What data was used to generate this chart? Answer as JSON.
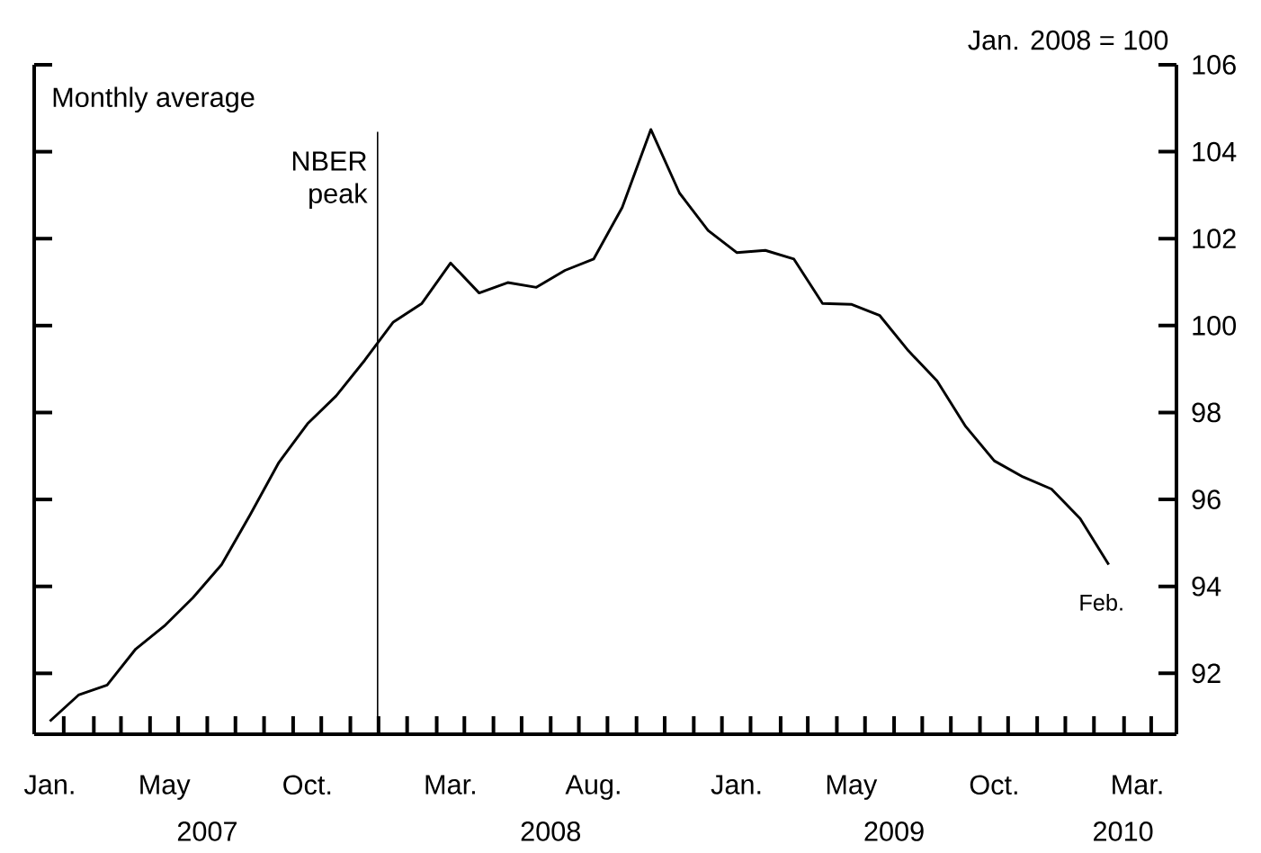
{
  "chart_data": {
    "type": "line",
    "ylabel": "Jan. 2008 = 100",
    "x": [
      "2007-01",
      "2007-02",
      "2007-03",
      "2007-04",
      "2007-05",
      "2007-06",
      "2007-07",
      "2007-08",
      "2007-09",
      "2007-10",
      "2007-11",
      "2007-12",
      "2008-01",
      "2008-02",
      "2008-03",
      "2008-04",
      "2008-05",
      "2008-06",
      "2008-07",
      "2008-08",
      "2008-09",
      "2008-10",
      "2008-11",
      "2008-12",
      "2009-01",
      "2009-02",
      "2009-03",
      "2009-04",
      "2009-05",
      "2009-06",
      "2009-07",
      "2009-08",
      "2009-09",
      "2009-10",
      "2009-11",
      "2009-12",
      "2010-01",
      "2010-02"
    ],
    "series": [
      {
        "color": "#000000",
        "values": [
          90.9,
          91.5,
          91.73,
          92.56,
          93.09,
          93.74,
          94.5,
          95.65,
          96.85,
          97.74,
          98.38,
          99.2,
          100.08,
          100.51,
          101.44,
          100.75,
          100.99,
          100.88,
          101.27,
          101.53,
          102.72,
          104.51,
          103.05,
          102.19,
          101.68,
          101.73,
          101.53,
          100.51,
          100.49,
          100.23,
          99.42,
          98.73,
          97.68,
          96.89,
          96.52,
          96.24,
          95.56,
          94.5
        ]
      }
    ],
    "xlim": [
      "2006-12-15",
      "2010-04-12"
    ],
    "xticks": [
      {
        "value": "2007-01",
        "label": "Jan."
      },
      {
        "value": "2007-05",
        "label": "May"
      },
      {
        "value": "2007-10",
        "label": "Oct."
      },
      {
        "value": "2008-03",
        "label": "Mar."
      },
      {
        "value": "2008-08",
        "label": "Aug."
      },
      {
        "value": "2009-01",
        "label": "Jan."
      },
      {
        "value": "2009-05",
        "label": "May"
      },
      {
        "value": "2009-10",
        "label": "Oct."
      },
      {
        "value": "2010-03",
        "label": "Mar."
      },
      {
        "value": "2007-01-16",
        "label": null
      },
      {
        "value": "2007-02-16",
        "label": null
      },
      {
        "value": "2007-03-16",
        "label": null
      },
      {
        "value": "2007-04-16",
        "label": null
      },
      {
        "value": "2007-05-16",
        "label": null
      },
      {
        "value": "2007-06-16",
        "label": null
      },
      {
        "value": "2007-07-16",
        "label": null
      },
      {
        "value": "2007-08-16",
        "label": null
      },
      {
        "value": "2007-09-16",
        "label": null
      },
      {
        "value": "2007-10-16",
        "label": null
      },
      {
        "value": "2007-11-16",
        "label": null
      },
      {
        "value": "2007-12-16",
        "label": null
      },
      {
        "value": "2008-01-16",
        "label": null
      },
      {
        "value": "2008-02-16",
        "label": null
      },
      {
        "value": "2008-03-16",
        "label": null
      },
      {
        "value": "2008-04-16",
        "label": null
      },
      {
        "value": "2008-05-16",
        "label": null
      },
      {
        "value": "2008-06-16",
        "label": null
      },
      {
        "value": "2008-07-16",
        "label": null
      },
      {
        "value": "2008-08-16",
        "label": null
      },
      {
        "value": "2008-09-16",
        "label": null
      },
      {
        "value": "2008-10-16",
        "label": null
      },
      {
        "value": "2008-11-16",
        "label": null
      },
      {
        "value": "2008-12-16",
        "label": null
      },
      {
        "value": "2009-01-16",
        "label": null
      },
      {
        "value": "2009-02-16",
        "label": null
      },
      {
        "value": "2009-03-16",
        "label": null
      },
      {
        "value": "2009-04-16",
        "label": null
      },
      {
        "value": "2009-05-16",
        "label": null
      },
      {
        "value": "2009-06-16",
        "label": null
      },
      {
        "value": "2009-07-16",
        "label": null
      },
      {
        "value": "2009-08-16",
        "label": null
      },
      {
        "value": "2009-09-16",
        "label": null
      },
      {
        "value": "2009-10-16",
        "label": null
      },
      {
        "value": "2009-11-16",
        "label": null
      },
      {
        "value": "2009-12-16",
        "label": null
      },
      {
        "value": "2010-01-16",
        "label": null
      },
      {
        "value": "2010-02-16",
        "label": null
      },
      {
        "value": "2010-03-16",
        "label": null
      }
    ],
    "ylim": [
      90.6,
      106
    ],
    "yticks": [
      92,
      94,
      96,
      98,
      100,
      102,
      104,
      106
    ],
    "ref_lines": [
      {
        "axis": "x",
        "value": "2007-12-15",
        "label": "NBER peak"
      }
    ],
    "annotations": [
      "Monthly average",
      {
        "text": "Feb.",
        "x": "2010-02",
        "y": 94.5
      }
    ],
    "x2lim": [
      "2006-12-15",
      "2010-04-12"
    ],
    "x2ticks": [
      {
        "value": "2007-06-16",
        "label": "2007"
      },
      {
        "value": "2008-06-16",
        "label": "2008"
      },
      {
        "value": "2009-06-16",
        "label": "2009"
      },
      {
        "value": "2010-02-15",
        "label": "2010"
      }
    ]
  }
}
